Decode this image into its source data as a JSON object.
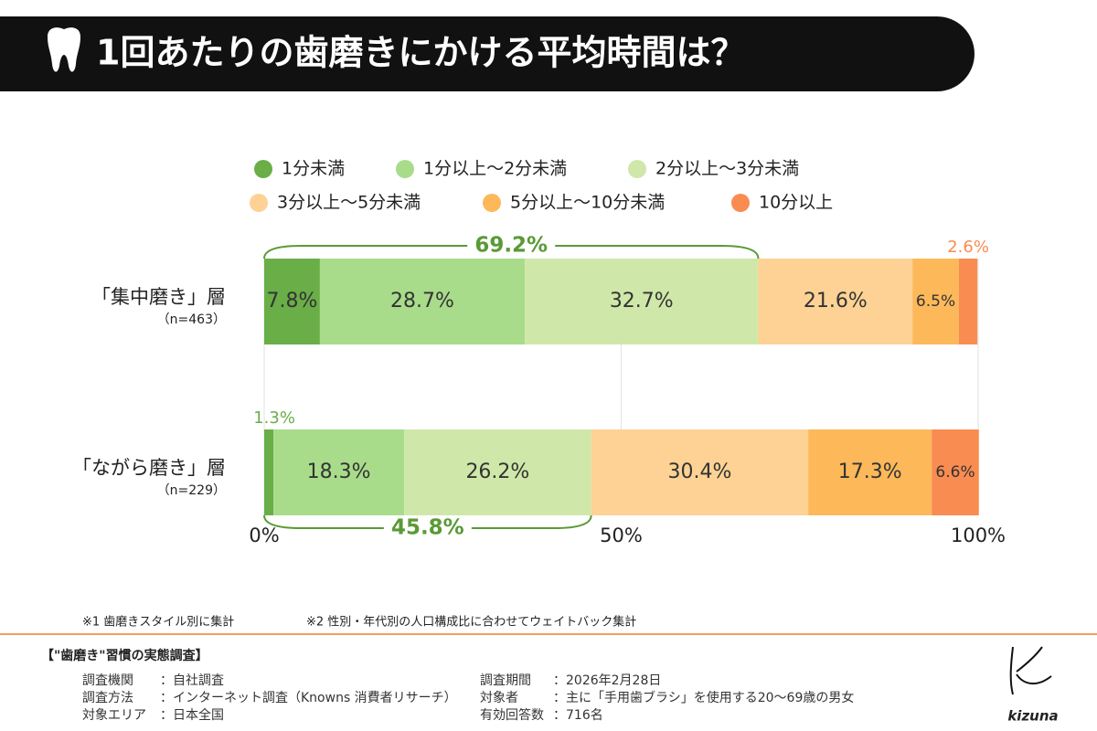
{
  "chart_data": {
    "type": "stacked-barh",
    "title": "1回あたりの歯磨きにかける平均時間は？",
    "categories": [
      "「集中磨き」層",
      "「ながら磨き」層"
    ],
    "category_notes": [
      "（n=463）",
      "（n=229）"
    ],
    "series": [
      {
        "name": "1分未満",
        "color": "#6aae48",
        "values": [
          7.8,
          1.3
        ],
        "value_labels": [
          "7.8%",
          "1.3%"
        ]
      },
      {
        "name": "1分以上～2分未満",
        "color": "#a8dc8a",
        "values": [
          28.7,
          18.3
        ],
        "value_labels": [
          "28.7%",
          "18.3%"
        ]
      },
      {
        "name": "2分以上～3分未満",
        "color": "#cfe8a9",
        "values": [
          32.7,
          26.2
        ],
        "value_labels": [
          "32.7%",
          "26.2%"
        ]
      },
      {
        "name": "3分以上～5分未満",
        "color": "#fdd294",
        "values": [
          21.6,
          30.4
        ],
        "value_labels": [
          "21.6%",
          "30.4%"
        ]
      },
      {
        "name": "5分以上～10分未満",
        "color": "#fdb85a",
        "values": [
          6.5,
          17.3
        ],
        "value_labels": [
          "6.5%",
          "17.3%"
        ]
      },
      {
        "name": "10分以上",
        "color": "#f98c50",
        "values": [
          2.6,
          6.6
        ],
        "value_labels": [
          "2.6%",
          "6.6%"
        ]
      }
    ],
    "brackets": [
      {
        "value": 69.2,
        "label": "69.2%"
      },
      {
        "value": 45.8,
        "label": "45.8%"
      }
    ],
    "xlim": [
      0,
      100
    ],
    "xticks": [
      {
        "value": 0,
        "label": "0%"
      },
      {
        "value": 50,
        "label": "50%"
      },
      {
        "value": 100,
        "label": "100%"
      }
    ],
    "grid": true
  },
  "footnotes": [
    "※1 歯磨きスタイル別に集計",
    "※2 性別・年代別の人口構成比に合わせてウェイトバック集計"
  ],
  "survey": {
    "heading": "【\"歯磨き\"習慣の実態調査】",
    "left": [
      {
        "key": "調査機関",
        "value": "：自社調査"
      },
      {
        "key": "調査方法",
        "value": "：インターネット調査（Knowns 消費者リサーチ）"
      },
      {
        "key": "対象エリア",
        "value": "：日本全国"
      }
    ],
    "right": [
      {
        "key": "調査期間",
        "value": "：2026年2月28日"
      },
      {
        "key": "対象者",
        "value": "：主に「手用歯ブラシ」を使用する20～69歳の男女"
      },
      {
        "key": "有効回答数",
        "value": "：716名"
      }
    ]
  },
  "logo": "kizuna"
}
